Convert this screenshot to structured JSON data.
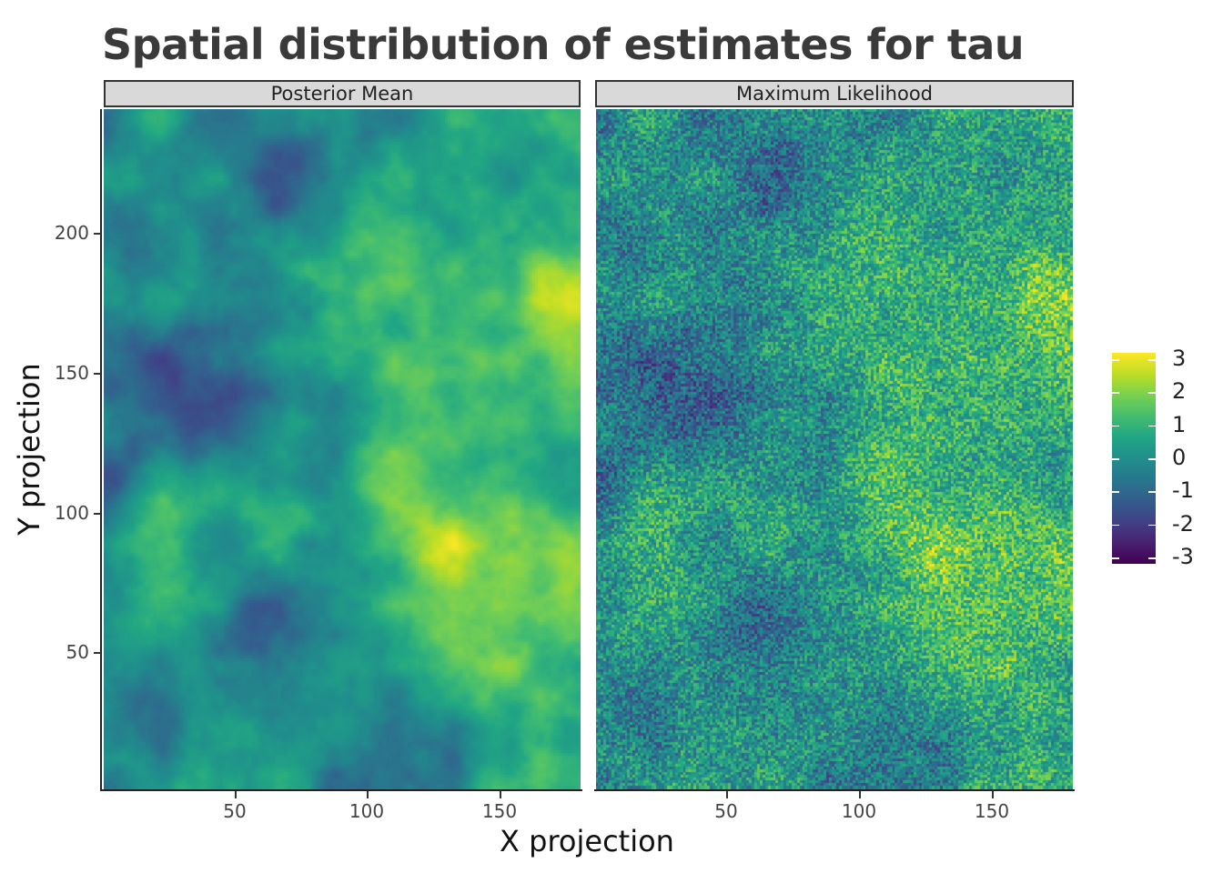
{
  "chart_data": {
    "type": "heatmap",
    "title": "Spatial distribution of estimates for tau",
    "xlabel": "X projection",
    "ylabel": "Y projection",
    "xlim": [
      0,
      180
    ],
    "ylim": [
      0,
      245
    ],
    "x_ticks": [
      "50",
      "100",
      "150"
    ],
    "y_ticks": [
      "50",
      "100",
      "150",
      "200"
    ],
    "x_tick_values": [
      50,
      100,
      150
    ],
    "y_tick_values": [
      50,
      100,
      150,
      200
    ],
    "panels": [
      {
        "name": "Posterior Mean",
        "smooth": true
      },
      {
        "name": "Maximum Likelihood",
        "smooth": false
      }
    ],
    "colorbar": {
      "min": -3,
      "max": 3,
      "labels": [
        "3",
        "2",
        "1",
        "0",
        "-1",
        "-2",
        "-3"
      ],
      "values": [
        3,
        2,
        1,
        0,
        -1,
        -2,
        -3
      ],
      "palette": "viridis"
    },
    "grid": false,
    "legend_position": "right"
  }
}
